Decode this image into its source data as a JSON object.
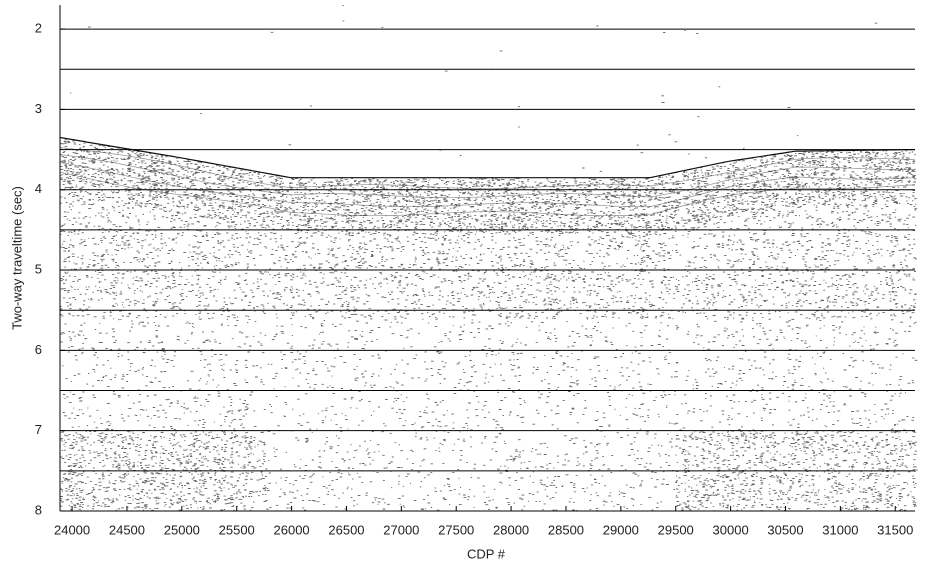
{
  "chart_data": {
    "type": "seismic-section",
    "xlabel": "CDP #",
    "ylabel": "Two-way traveltime (sec)",
    "xlim": [
      23890,
      31680
    ],
    "ylim": [
      8,
      1.7
    ],
    "xticks": [
      24000,
      24500,
      25000,
      25500,
      26000,
      26500,
      27000,
      27500,
      28000,
      28500,
      29000,
      29500,
      30000,
      30500,
      31000,
      31500
    ],
    "yticks": [
      2,
      3,
      4,
      5,
      6,
      7,
      8
    ],
    "grid_lines": [
      2,
      2.5,
      3,
      3.5,
      4,
      4.5,
      5,
      5.5,
      6,
      6.5,
      7,
      7.5
    ],
    "y_inverted": true
  }
}
